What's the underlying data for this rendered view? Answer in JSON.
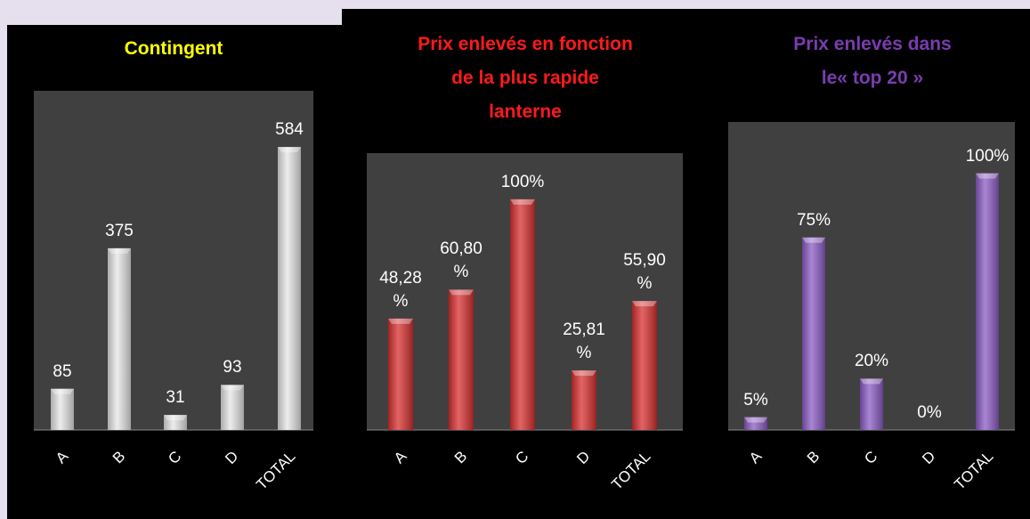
{
  "chart_data": [
    {
      "type": "bar",
      "title": "Contingent",
      "title_color": "#ffff00",
      "color": "#e6e6e6",
      "categories": [
        "A",
        "B",
        "C",
        "D",
        "TOTAL"
      ],
      "values": [
        85,
        375,
        31,
        93,
        584
      ],
      "ylim": [
        0,
        700
      ]
    },
    {
      "type": "bar",
      "title": "Prix enlevés en fonction\nde la plus rapide\nlanterne",
      "title_color": "#ff1a1a",
      "color": "#d83030",
      "categories": [
        "A",
        "B",
        "C",
        "D",
        "TOTAL"
      ],
      "values": [
        48.28,
        60.8,
        100,
        25.81,
        55.9
      ],
      "value_labels": [
        "48,28 %",
        "60,80 %",
        "100%",
        "25,81 %",
        "55,90 %"
      ],
      "ylim": [
        0,
        120
      ]
    },
    {
      "type": "bar",
      "title": "Prix enlevés dans\nle« top 20 »",
      "title_color": "#7a3cb0",
      "color": "#8c5cc4",
      "categories": [
        "A",
        "B",
        "C",
        "D",
        "TOTAL"
      ],
      "values": [
        5,
        75,
        20,
        0,
        100
      ],
      "value_labels": [
        "5%",
        "75%",
        "20%",
        "0%",
        "100%"
      ],
      "ylim": [
        0,
        120
      ]
    }
  ]
}
